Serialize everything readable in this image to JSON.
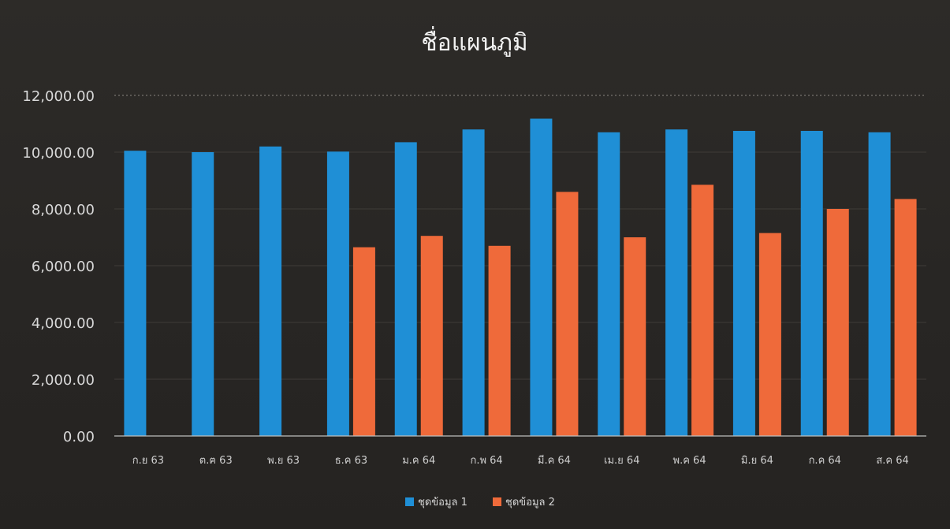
{
  "chart_data": {
    "type": "bar",
    "title": "ชื่อแผนภูมิ",
    "xlabel": "",
    "ylabel": "",
    "ylim": [
      0,
      12000
    ],
    "yticks": [
      "0.00",
      "2,000.00",
      "4,000.00",
      "6,000.00",
      "8,000.00",
      "10,000.00",
      "12,000.00"
    ],
    "grid": true,
    "legend_position": "bottom",
    "categories": [
      "ก.ย 63",
      "ต.ฅ 63",
      "พ.ย 63",
      "ธ.ค 63",
      "ม.ค 64",
      "ก.พ 64",
      "มี.ค 64",
      "เม.ย 64",
      "พ.ค 64",
      "มิ.ย 64",
      "ก.ค 64",
      "ส.ค 64"
    ],
    "series": [
      {
        "name": "ชุดข้อมูล 1",
        "color": "#1f8fd6",
        "values": [
          10050,
          10000,
          10200,
          10020,
          10350,
          10800,
          11180,
          10700,
          10800,
          10750,
          10750,
          10700
        ]
      },
      {
        "name": "ชุดข้อมูล 2",
        "color": "#ef6a3a",
        "values": [
          null,
          null,
          null,
          6650,
          7050,
          6700,
          8600,
          7000,
          8850,
          7150,
          8000,
          8350
        ]
      }
    ]
  }
}
